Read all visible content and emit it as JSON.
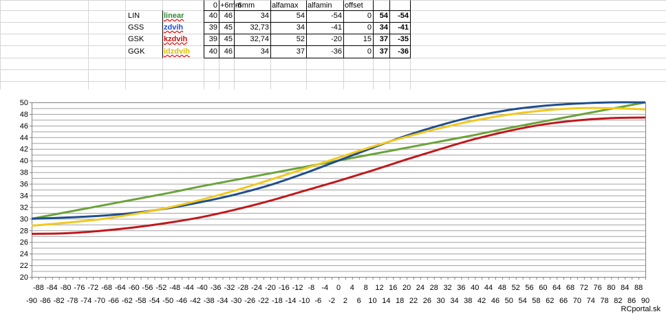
{
  "table": {
    "headers": [
      "0",
      "+6mm",
      "-6mm",
      "alfamax",
      "alfamin",
      "offset"
    ],
    "rows": [
      {
        "name": "LIN",
        "func": "linear",
        "color": "#2e8b2e",
        "v": [
          "40",
          "46",
          "34",
          "54",
          "-54",
          "0"
        ],
        "r1": "54",
        "r2": "-54"
      },
      {
        "name": "GSS",
        "func": "zdvih",
        "color": "#1f4fd8",
        "v": [
          "39",
          "45",
          "32,73",
          "34",
          "-41",
          "0"
        ],
        "r1": "34",
        "r2": "-41"
      },
      {
        "name": "GSK",
        "func": "kzdvih",
        "color": "#d01010",
        "v": [
          "39",
          "45",
          "32,74",
          "52",
          "-20",
          "15"
        ],
        "r1": "37",
        "r2": "-35"
      },
      {
        "name": "GGK",
        "func": "idzdvih",
        "color": "#d8c000",
        "v": [
          "40",
          "46",
          "34",
          "37",
          "-36",
          "0"
        ],
        "r1": "37",
        "r2": "-36"
      }
    ]
  },
  "chart_data": {
    "type": "line",
    "title": "",
    "xlabel": "",
    "ylabel": "",
    "ylim": [
      20,
      50
    ],
    "xlim": [
      -90,
      90
    ],
    "yticks": [
      20,
      22,
      24,
      26,
      28,
      30,
      32,
      34,
      36,
      38,
      40,
      42,
      44,
      46,
      48,
      50
    ],
    "xticks_top": [
      -88,
      -84,
      -80,
      -76,
      -72,
      -68,
      -64,
      -60,
      -56,
      -52,
      -48,
      -44,
      -40,
      -36,
      -32,
      -28,
      -24,
      -20,
      -16,
      -12,
      -8,
      -4,
      0,
      4,
      8,
      12,
      16,
      20,
      24,
      28,
      32,
      36,
      40,
      44,
      48,
      52,
      56,
      60,
      64,
      68,
      72,
      76,
      80,
      84,
      88
    ],
    "xticks_bottom": [
      -90,
      -86,
      -82,
      -78,
      -74,
      -70,
      -66,
      -62,
      -58,
      -54,
      -50,
      -46,
      -42,
      -38,
      -34,
      -30,
      -26,
      -22,
      -18,
      -14,
      -10,
      -6,
      -2,
      2,
      6,
      10,
      14,
      18,
      22,
      26,
      30,
      34,
      38,
      42,
      46,
      50,
      54,
      58,
      62,
      66,
      70,
      74,
      78,
      82,
      86,
      90
    ],
    "grid": true,
    "x": [
      -90,
      -80,
      -70,
      -60,
      -50,
      -40,
      -30,
      -20,
      -10,
      0,
      10,
      20,
      30,
      40,
      50,
      60,
      70,
      80,
      90
    ],
    "series": [
      {
        "color": "#6aa33a",
        "values": [
          30,
          31.1,
          32.2,
          33.3,
          34.4,
          35.6,
          36.7,
          37.8,
          38.9,
          40,
          41.1,
          42.2,
          43.3,
          44.4,
          45.6,
          46.7,
          47.8,
          48.9,
          50
        ]
      },
      {
        "color": "#1f4e8c",
        "values": [
          30,
          30.2,
          30.5,
          31,
          31.8,
          32.9,
          34.2,
          35.8,
          37.8,
          40,
          42.2,
          44.3,
          46.1,
          47.6,
          48.7,
          49.4,
          49.8,
          50,
          50
        ]
      },
      {
        "color": "#c0181c",
        "values": [
          27.4,
          27.5,
          27.9,
          28.5,
          29.3,
          30.3,
          31.6,
          33.1,
          34.8,
          36.5,
          38.3,
          40.2,
          42,
          43.7,
          45.1,
          46.2,
          46.9,
          47.3,
          47.4
        ]
      },
      {
        "color": "#f2c81e",
        "values": [
          28.8,
          29.3,
          29.9,
          30.8,
          31.9,
          33.3,
          34.9,
          36.7,
          38.6,
          40.5,
          42.4,
          44.1,
          45.6,
          46.9,
          47.9,
          48.6,
          49,
          49,
          48.8
        ]
      }
    ]
  },
  "footer": {
    "credit": "RCportal.sk"
  }
}
